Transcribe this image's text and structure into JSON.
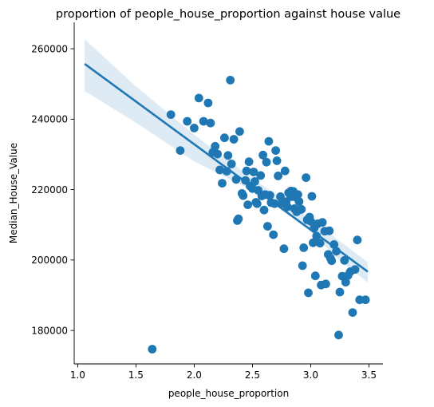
{
  "chart_data": {
    "type": "scatter",
    "title": "proportion of people_house_proportion against house value",
    "xlabel": "people_house_proportion",
    "ylabel": "Median_House_Value",
    "xlim": [
      0.97,
      3.62
    ],
    "ylim": [
      170500,
      267500
    ],
    "xticks": [
      1.0,
      1.5,
      2.0,
      2.5,
      3.0,
      3.5
    ],
    "xtick_labels": [
      "1.0",
      "1.5",
      "2.0",
      "2.5",
      "3.0",
      "3.5"
    ],
    "yticks": [
      180000,
      200000,
      220000,
      240000,
      260000
    ],
    "ytick_labels": [
      "180000",
      "200000",
      "220000",
      "240000",
      "260000"
    ],
    "grid": false,
    "legend": "none",
    "marker_color": "#1f77b4",
    "ci_color": "#1f77b4",
    "regression": {
      "x_start": 1.06,
      "x_end": 3.49,
      "y_start": 255700,
      "y_end": 196700,
      "ci_upper": [
        [
          1.06,
          262700
        ],
        [
          1.5,
          249300
        ],
        [
          2.0,
          235600
        ],
        [
          2.5,
          223200
        ],
        [
          2.75,
          217600
        ],
        [
          3.0,
          211600
        ],
        [
          3.25,
          205300
        ],
        [
          3.49,
          199400
        ]
      ],
      "ci_lower": [
        [
          1.06,
          248000
        ],
        [
          1.5,
          239000
        ],
        [
          2.0,
          228000
        ],
        [
          2.5,
          219700
        ],
        [
          2.75,
          214200
        ],
        [
          3.0,
          208000
        ],
        [
          3.25,
          199800
        ],
        [
          3.49,
          193600
        ]
      ]
    },
    "points": [
      [
        1.64,
        174700
      ],
      [
        1.8,
        241300
      ],
      [
        1.88,
        231100
      ],
      [
        1.94,
        239400
      ],
      [
        2.0,
        237500
      ],
      [
        2.04,
        246000
      ],
      [
        2.08,
        239400
      ],
      [
        2.12,
        244600
      ],
      [
        2.14,
        238900
      ],
      [
        2.16,
        230600
      ],
      [
        2.18,
        232300
      ],
      [
        2.2,
        230100
      ],
      [
        2.22,
        225600
      ],
      [
        2.24,
        221800
      ],
      [
        2.26,
        234700
      ],
      [
        2.28,
        225200
      ],
      [
        2.29,
        229700
      ],
      [
        2.31,
        251100
      ],
      [
        2.32,
        227300
      ],
      [
        2.34,
        234300
      ],
      [
        2.36,
        222900
      ],
      [
        2.37,
        211200
      ],
      [
        2.38,
        211700
      ],
      [
        2.39,
        236500
      ],
      [
        2.41,
        218900
      ],
      [
        2.42,
        218300
      ],
      [
        2.44,
        222600
      ],
      [
        2.45,
        225300
      ],
      [
        2.46,
        215700
      ],
      [
        2.47,
        227900
      ],
      [
        2.48,
        221000
      ],
      [
        2.5,
        220300
      ],
      [
        2.51,
        225000
      ],
      [
        2.52,
        222300
      ],
      [
        2.53,
        216400
      ],
      [
        2.54,
        216000
      ],
      [
        2.55,
        219800
      ],
      [
        2.57,
        224000
      ],
      [
        2.58,
        218200
      ],
      [
        2.59,
        229800
      ],
      [
        2.6,
        214200
      ],
      [
        2.61,
        218600
      ],
      [
        2.62,
        227800
      ],
      [
        2.63,
        209600
      ],
      [
        2.64,
        233700
      ],
      [
        2.65,
        218400
      ],
      [
        2.66,
        216300
      ],
      [
        2.68,
        207200
      ],
      [
        2.69,
        216000
      ],
      [
        2.7,
        231100
      ],
      [
        2.71,
        228200
      ],
      [
        2.72,
        223900
      ],
      [
        2.74,
        218000
      ],
      [
        2.75,
        216100
      ],
      [
        2.77,
        203200
      ],
      [
        2.78,
        225300
      ],
      [
        2.79,
        216600
      ],
      [
        2.8,
        215100
      ],
      [
        2.81,
        219100
      ],
      [
        2.82,
        218700
      ],
      [
        2.83,
        219600
      ],
      [
        2.84,
        218000
      ],
      [
        2.85,
        219500
      ],
      [
        2.86,
        214600
      ],
      [
        2.87,
        217900
      ],
      [
        2.88,
        213700
      ],
      [
        2.89,
        218600
      ],
      [
        2.9,
        216600
      ],
      [
        2.91,
        214300
      ],
      [
        2.92,
        214400
      ],
      [
        2.93,
        198400
      ],
      [
        2.94,
        203500
      ],
      [
        2.96,
        223400
      ],
      [
        2.97,
        211400
      ],
      [
        2.98,
        190700
      ],
      [
        2.99,
        212200
      ],
      [
        3.0,
        211000
      ],
      [
        3.01,
        218100
      ],
      [
        3.02,
        204900
      ],
      [
        3.03,
        209100
      ],
      [
        3.04,
        195500
      ],
      [
        3.05,
        206800
      ],
      [
        3.06,
        210300
      ],
      [
        3.08,
        204800
      ],
      [
        3.09,
        192900
      ],
      [
        3.1,
        210700
      ],
      [
        3.12,
        208200
      ],
      [
        3.13,
        193200
      ],
      [
        3.15,
        201600
      ],
      [
        3.16,
        208300
      ],
      [
        3.17,
        200500
      ],
      [
        3.18,
        199800
      ],
      [
        3.2,
        204400
      ],
      [
        3.22,
        202500
      ],
      [
        3.24,
        178700
      ],
      [
        3.25,
        190900
      ],
      [
        3.27,
        195400
      ],
      [
        3.29,
        199900
      ],
      [
        3.3,
        193700
      ],
      [
        3.32,
        195600
      ],
      [
        3.34,
        196700
      ],
      [
        3.36,
        185100
      ],
      [
        3.38,
        197300
      ],
      [
        3.4,
        205700
      ],
      [
        3.42,
        188700
      ],
      [
        3.47,
        188700
      ]
    ]
  }
}
